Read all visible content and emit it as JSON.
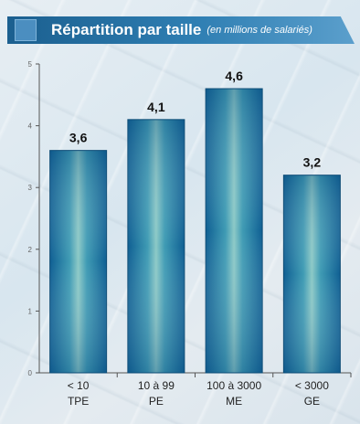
{
  "header": {
    "title": "Répartition par taille",
    "subtitle": "(en millions de salariés)"
  },
  "chart_data": {
    "type": "bar",
    "title": "Répartition par taille",
    "subtitle": "(en millions de salariés)",
    "categories": [
      "< 10",
      "10 à  99",
      "100 à 3000",
      "< 3000"
    ],
    "category_sublabels": [
      "TPE",
      "PE",
      "ME",
      "GE"
    ],
    "values": [
      3.6,
      4.1,
      4.6,
      3.2
    ],
    "value_labels": [
      "3,6",
      "4,1",
      "4,6",
      "3,2"
    ],
    "ylim": [
      0,
      5
    ],
    "yticks": [
      0,
      1,
      2,
      3,
      4,
      5
    ],
    "ytick_labels": [
      "0",
      "1",
      "2",
      "3",
      "4",
      "5"
    ],
    "grid": false,
    "bar_color": "#1f7fa6",
    "bar_highlight": "#8cc9c6"
  }
}
